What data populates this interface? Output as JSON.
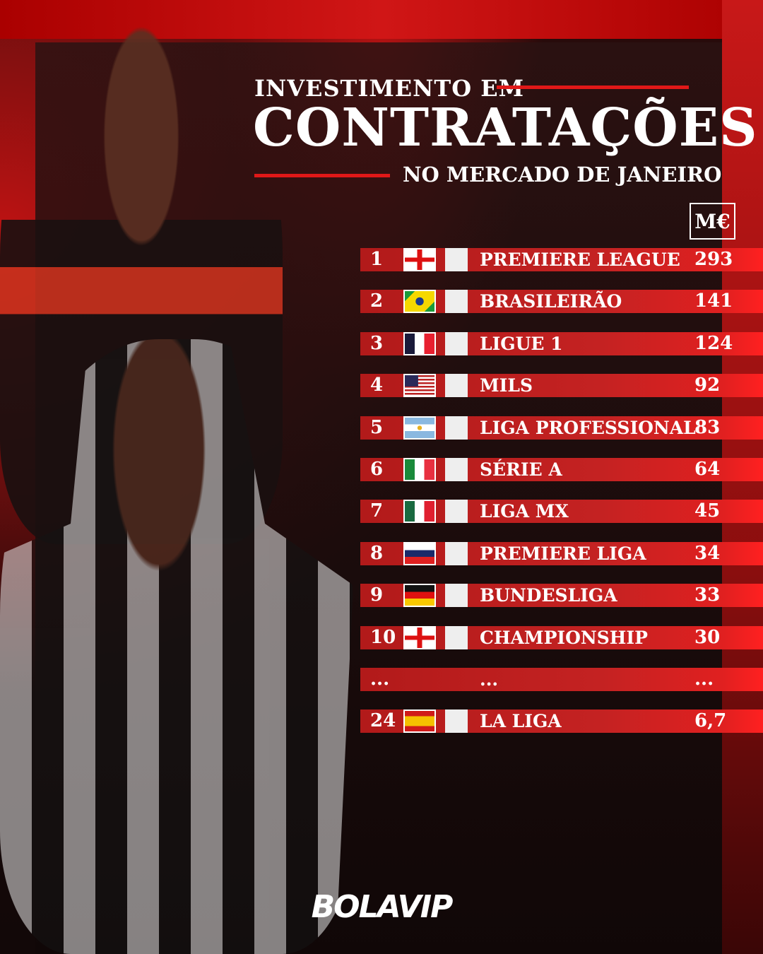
{
  "header": {
    "line1": "INVESTIMENTO EM",
    "line2": "CONTRATAÇÕES",
    "line3": "NO MERCADO DE JANEIRO",
    "unit": "M€"
  },
  "chart_data": {
    "type": "table",
    "columns": [
      "rank",
      "country",
      "league",
      "value_meur"
    ],
    "rows": [
      {
        "rank": "1",
        "country": "England",
        "flag": "england",
        "league": "PREMIERE LEAGUE",
        "value": "293"
      },
      {
        "rank": "2",
        "country": "Brazil",
        "flag": "brazil",
        "league": "BRASILEIRÃO",
        "value": "141"
      },
      {
        "rank": "3",
        "country": "France",
        "flag": "france",
        "league": "LIGUE 1",
        "value": "124"
      },
      {
        "rank": "4",
        "country": "USA",
        "flag": "usa",
        "league": "MILS",
        "value": "92"
      },
      {
        "rank": "5",
        "country": "Argentina",
        "flag": "argentina",
        "league": "LIGA PROFESSIONAL",
        "value": "83"
      },
      {
        "rank": "6",
        "country": "Italy",
        "flag": "italy",
        "league": "SÉRIE A",
        "value": "64"
      },
      {
        "rank": "7",
        "country": "Mexico",
        "flag": "mexico",
        "league": "LIGA MX",
        "value": "45"
      },
      {
        "rank": "8",
        "country": "Russia",
        "flag": "russia",
        "league": "PREMIERE LIGA",
        "value": "34"
      },
      {
        "rank": "9",
        "country": "Germany",
        "flag": "germany",
        "league": "BUNDESLIGA",
        "value": "33"
      },
      {
        "rank": "10",
        "country": "England",
        "flag": "england",
        "league": "CHAMPIONSHIP",
        "value": "30"
      },
      {
        "rank": "...",
        "country": "",
        "flag": "",
        "league": "...",
        "value": "..."
      },
      {
        "rank": "24",
        "country": "Spain",
        "flag": "spain",
        "league": "LA LIGA",
        "value": "6,7"
      }
    ]
  },
  "colors": {
    "accent": "#d01e1e",
    "background": "#1a0c0c",
    "text": "#ffffff"
  },
  "footer": {
    "brand": "BOLAVIP"
  }
}
